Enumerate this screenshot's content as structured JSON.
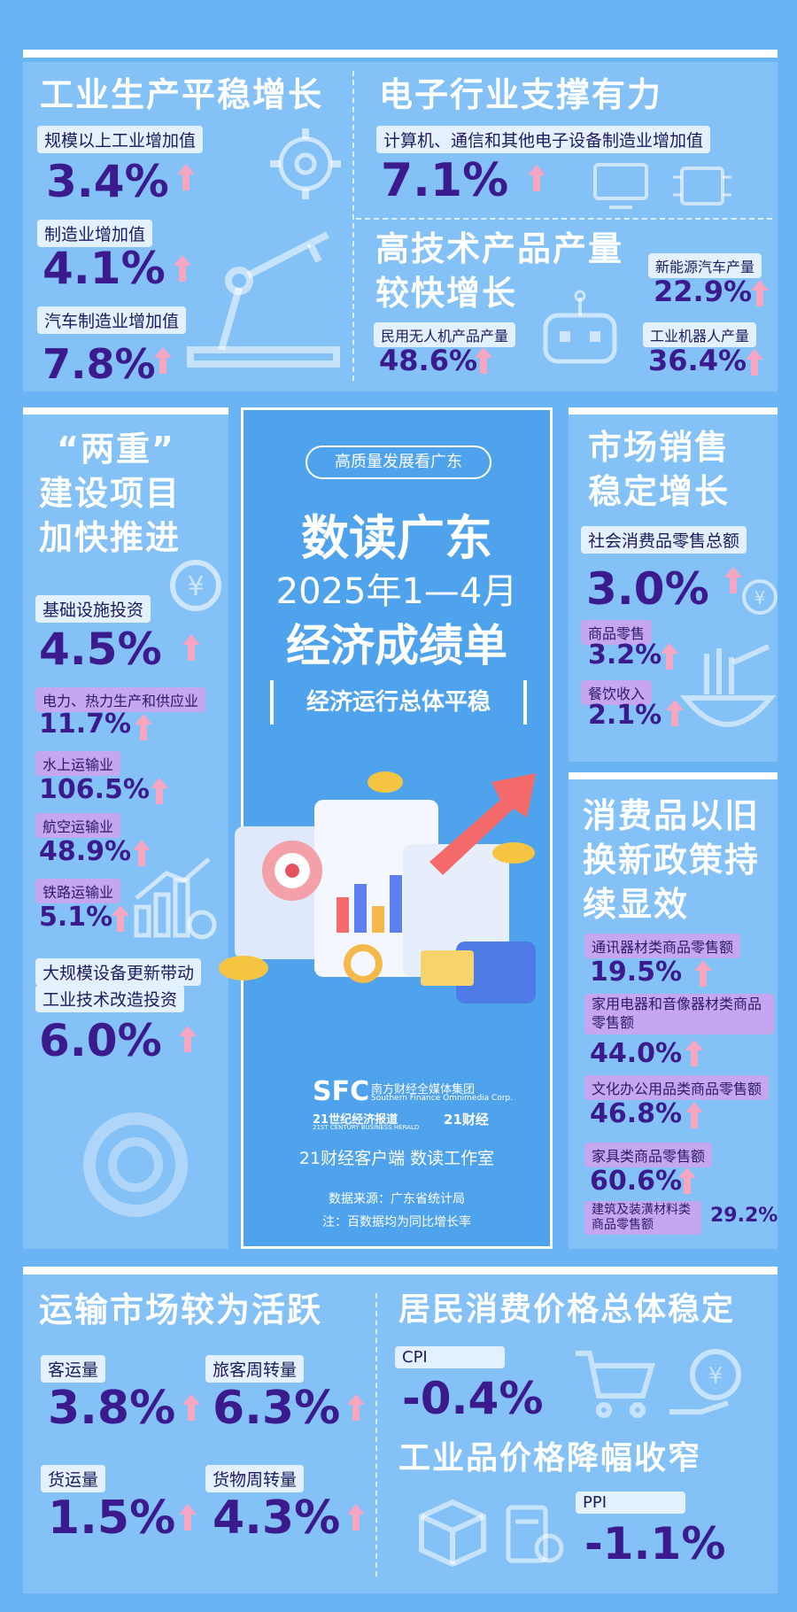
{
  "industry": {
    "title": "工业生产平稳增长",
    "items": [
      {
        "label": "规模以上工业增加值",
        "value": "3.4%"
      },
      {
        "label": "制造业增加值",
        "value": "4.1%"
      },
      {
        "label": "汽车制造业增加值",
        "value": "7.8%"
      }
    ]
  },
  "electronics": {
    "title": "电子行业支撑有力",
    "label": "计算机、通信和其他电子设备制造业增加值",
    "value": "7.1%"
  },
  "hightech": {
    "title_line1": "高技术产品产量",
    "title_line2": "较快增长",
    "items": [
      {
        "label": "新能源汽车产量",
        "value": "22.9%"
      },
      {
        "label": "民用无人机产品产量",
        "value": "48.6%"
      },
      {
        "label": "工业机器人产量",
        "value": "36.4%"
      }
    ]
  },
  "projects": {
    "title_line1": "“两重”",
    "title_line2": "建设项目",
    "title_line3": "加快推进",
    "items": [
      {
        "label": "基础设施投资",
        "value": "4.5%"
      },
      {
        "label": "电力、热力生产和供应业",
        "value": "11.7%"
      },
      {
        "label": "水上运输业",
        "value": "106.5%"
      },
      {
        "label": "航空运输业",
        "value": "48.9%"
      },
      {
        "label": "铁路运输业",
        "value": "5.1%"
      }
    ],
    "big_label_line1": "大规模设备更新带动",
    "big_label_line2": "工业技术改造投资",
    "big_value": "6.0%"
  },
  "center": {
    "tag": "高质量发展看广东",
    "title1": "数读广东",
    "title2": "2025年1—4月",
    "title3": "经济成绩单",
    "subtitle": "经济运行总体平稳",
    "logo_sfc": "SFC",
    "logo_group": "南方财经全媒体集团",
    "logo_group_en": "Southern Finance Omnimedia Corp.",
    "logo_21": "21世纪经济报道",
    "logo_21_en": "21ST CENTURY BUSINESS HERALD",
    "logo_21cj": "21财经",
    "studio": "21财经客户端  数读工作室",
    "source": "数据来源：广东省统计局",
    "note": "注：百数据均为同比增长率"
  },
  "market": {
    "title_line1": "市场销售",
    "title_line2": "稳定增长",
    "main_label": "社会消费品零售总额",
    "main_value": "3.0%",
    "items": [
      {
        "label": "商品零售",
        "value": "3.2%"
      },
      {
        "label": "餐饮收入",
        "value": "2.1%"
      }
    ]
  },
  "tradein": {
    "title_line1": "消费品以旧",
    "title_line2": "换新政策持",
    "title_line3": "续显效",
    "items": [
      {
        "label": "通讯器材类商品零售额",
        "value": "19.5%"
      },
      {
        "label": "家用电器和音像器材类商品零售额",
        "value": "44.0%"
      },
      {
        "label": "文化办公用品类商品零售额",
        "value": "46.8%"
      },
      {
        "label": "家具类商品零售额",
        "value": "60.6%"
      },
      {
        "label": "建筑及装潢材料类商品零售额",
        "value": "29.2%"
      }
    ]
  },
  "transport": {
    "title": "运输市场较为活跃",
    "items": [
      {
        "label": "客运量",
        "value": "3.8%"
      },
      {
        "label": "旅客周转量",
        "value": "6.3%"
      },
      {
        "label": "货运量",
        "value": "1.5%"
      },
      {
        "label": "货物周转量",
        "value": "4.3%"
      }
    ]
  },
  "prices": {
    "cpi_title": "居民消费价格总体稳定",
    "cpi_label": "CPI",
    "cpi_value": "-0.4%",
    "ppi_title": "工业品价格降幅收窄",
    "ppi_label": "PPI",
    "ppi_value": "-1.1%"
  },
  "colors": {
    "background": "#6ab4f5",
    "value_text": "#3a1a8c",
    "arrow": "#f7a6c2",
    "chip_purple": "#c6a6ee"
  }
}
